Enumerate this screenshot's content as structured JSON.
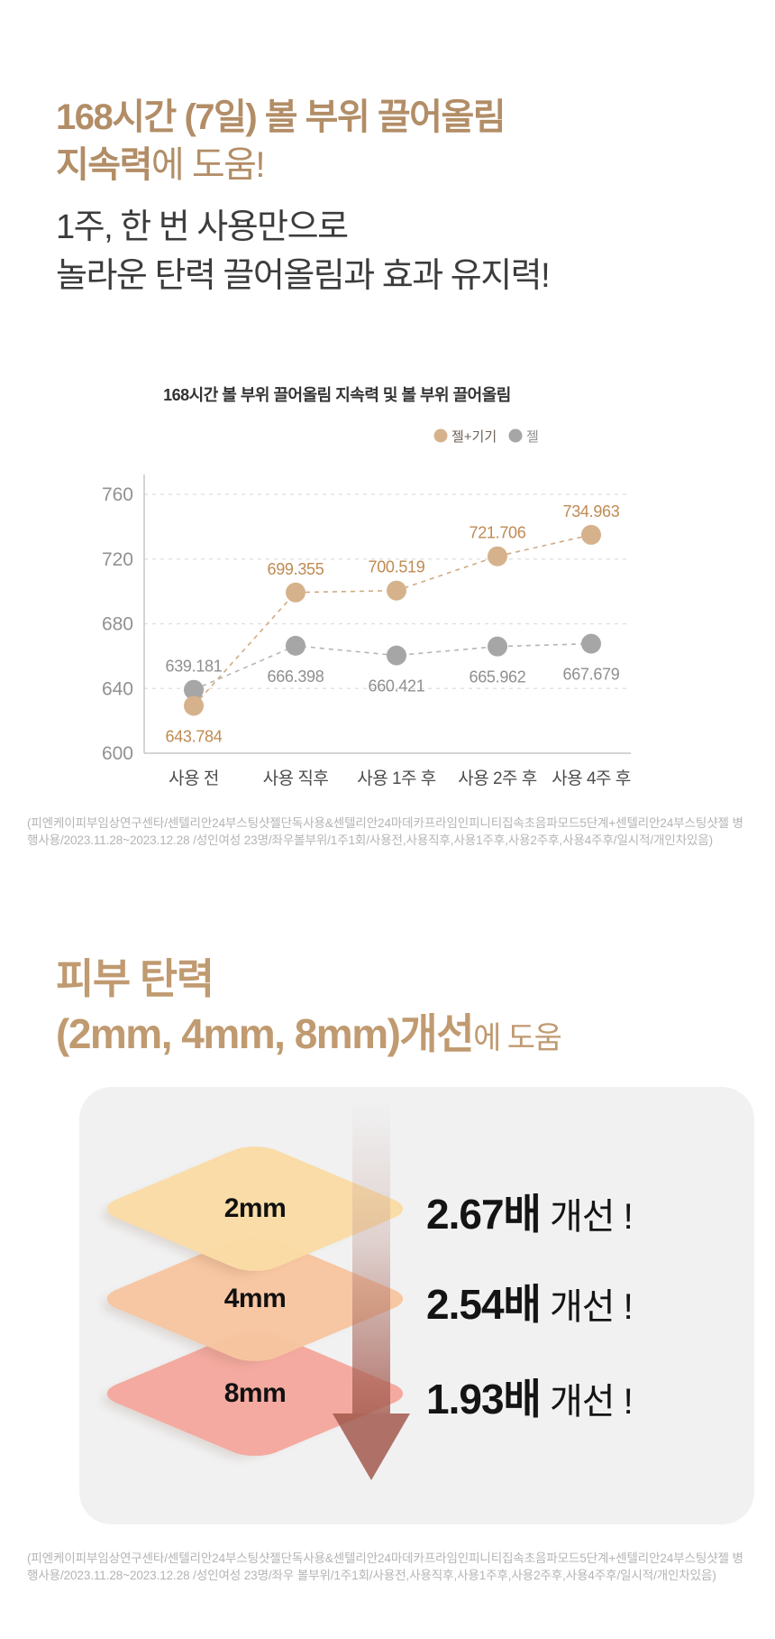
{
  "colors": {
    "brand_tan": "#b28d66",
    "section2_tan": "#c09a70",
    "text_dark": "#3c3c3c",
    "disclaimer_gray": "#b4b4b4",
    "panel_bg": "#f1f1f2",
    "arrow": "#a3584c"
  },
  "hero": {
    "title_line1": "168시간 (7일) 볼 부위 끌어올림",
    "title_line2_strong": "지속력",
    "title_line2_rest": "에 도움!",
    "subtitle_line1": "1주, 한 번 사용만으로",
    "subtitle_line2": "놀라운 탄력 끌어올림과 효과 유지력!"
  },
  "chart_data": {
    "type": "line",
    "title": "168시간 볼 부위 끌어올림 지속력 및 볼 부위 끌어올림",
    "categories": [
      "사용 전",
      "사용 직후",
      "사용 1주 후",
      "사용 2주 후",
      "사용 4주 후"
    ],
    "series": [
      {
        "name": "젤+기기",
        "color": "#d6b28c",
        "line_color": "#d0ab84",
        "label_color": "#bf8a52",
        "values": [
          643.784,
          699.355,
          700.519,
          721.706,
          734.963
        ],
        "dot_dy": [
          26,
          0,
          0,
          0,
          0
        ],
        "label_side": [
          "below",
          "above",
          "above",
          "above",
          "above"
        ]
      },
      {
        "name": "젤",
        "color": "#a6a6a6",
        "line_color": "#b5b5b5",
        "label_color": "#8f8f8f",
        "values": [
          639.181,
          666.398,
          660.421,
          665.962,
          667.679
        ],
        "dot_dy": [
          0,
          0,
          0,
          0,
          0
        ],
        "label_side": [
          "above",
          "below",
          "below",
          "below",
          "below"
        ]
      }
    ],
    "ylim": [
      600,
      770
    ],
    "yticks": [
      600,
      640,
      680,
      720,
      760
    ],
    "grid": "dashed-horizontal",
    "legend_position": "top-right",
    "line_style": "dashed"
  },
  "disclaimers": {
    "chart": "(피엔케이피부임상연구센타/센텔리안24부스팅샷젤단독사용&센텔리안24마데카프라임인피니티집속초음파모드5단계+센텔리안24부스팅샷젤 병행사용/2023.11.28~2023.12.28 /성인여성 23명/좌우볼부위/1주1회/사용전,사용직후,사용1주후,사용2주후,사용4주후/일시적/개인차있음)",
    "elasticity": "(피엔케이피부임상연구센타/센텔리안24부스팅샷젤단독사용&센텔리안24마데카프라임인피니티집속초음파모드5단계+센텔리안24부스팅샷젤 병행사용/2023.11.28~2023.12.28 /성인여성 23명/좌우 볼부위/1주1회/사용전,사용직후,사용1주후,사용2주후,사용4주후/일시적/개인차있음)"
  },
  "section2": {
    "title_line1": "피부 탄력",
    "title_line2_strong": "(2mm, 4mm, 8mm)개선",
    "title_line2_rest": "에 도움",
    "layers": [
      {
        "depth": "2mm",
        "improvement_strong": "2.67배",
        "improvement_rest": " 개선 !",
        "color": "#fbdca6"
      },
      {
        "depth": "4mm",
        "improvement_strong": "2.54배",
        "improvement_rest": " 개선 !",
        "color": "#f8c5a0"
      },
      {
        "depth": "8mm",
        "improvement_strong": "1.93배",
        "improvement_rest": " 개선 !",
        "color": "#f5a89e"
      }
    ]
  }
}
